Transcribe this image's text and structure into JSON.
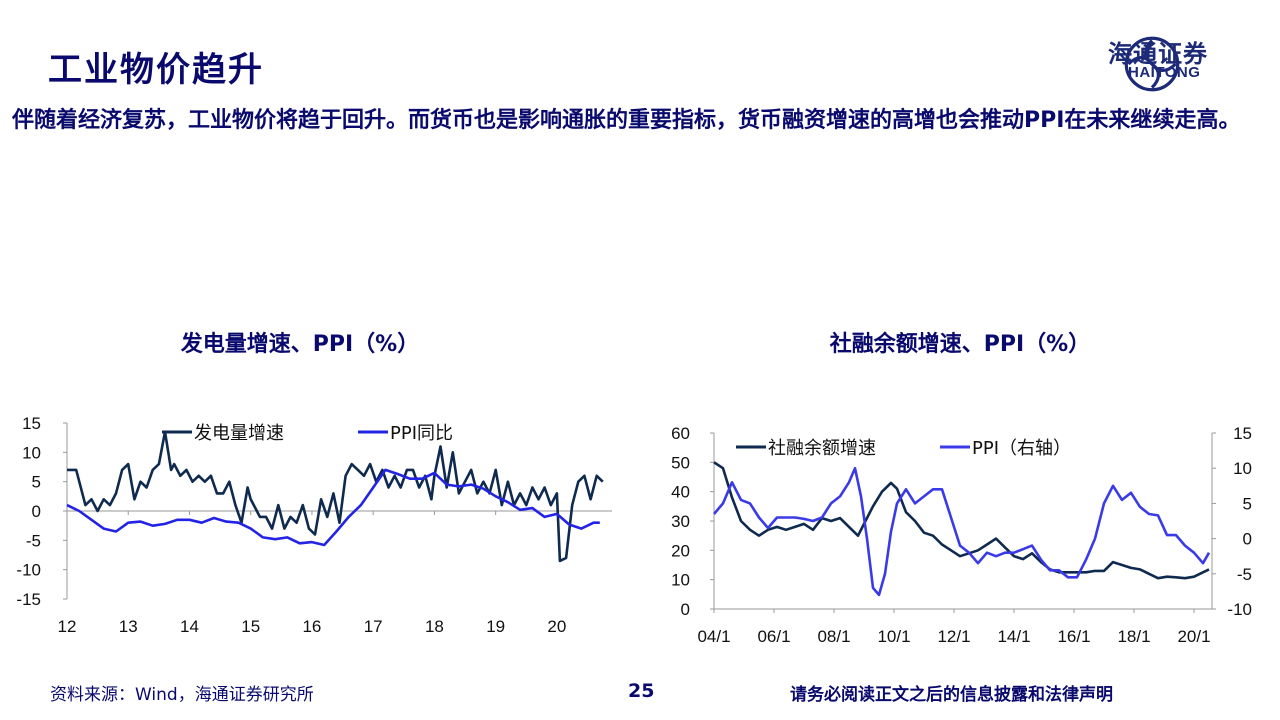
{
  "header": {
    "title": "工业物价趋升",
    "logo_cn": "海通证券",
    "logo_en": "HAITONG"
  },
  "intro": "伴随着经济复苏，工业物价将趋于回升。而货币也是影响通胀的重要指标，货币融资增速的高增也会推动PPI在未来继续走高。",
  "colors": {
    "dark": "#0f2a4f",
    "blue": "#2323e6",
    "accent": "#3a3ae8"
  },
  "footer": {
    "source": "资料来源：Wind，海通证券研究所",
    "page": "25",
    "disclaimer": "请务必阅读正文之后的信息披露和法律声明"
  },
  "chart_data": [
    {
      "type": "line",
      "title": "发电量增速、PPI（%）",
      "ylim": [
        -15,
        15
      ],
      "yticks": [
        "15",
        "10",
        "5",
        "0",
        "-5",
        "-10",
        "-15"
      ],
      "xlim": [
        2012,
        2020.9
      ],
      "xticks": [
        "12",
        "13",
        "14",
        "15",
        "16",
        "17",
        "18",
        "19",
        "20"
      ],
      "legend": "top",
      "series": [
        {
          "name": "发电量增速",
          "x": [
            2012.0,
            2012.15,
            2012.3,
            2012.4,
            2012.5,
            2012.6,
            2012.7,
            2012.8,
            2012.9,
            2013.0,
            2013.1,
            2013.2,
            2013.3,
            2013.4,
            2013.5,
            2013.6,
            2013.7,
            2013.75,
            2013.85,
            2013.95,
            2014.05,
            2014.15,
            2014.25,
            2014.35,
            2014.45,
            2014.55,
            2014.65,
            2014.75,
            2014.85,
            2014.95,
            2015.0,
            2015.05,
            2015.15,
            2015.25,
            2015.35,
            2015.45,
            2015.55,
            2015.65,
            2015.75,
            2015.85,
            2015.95,
            2016.05,
            2016.15,
            2016.25,
            2016.35,
            2016.45,
            2016.55,
            2016.65,
            2016.75,
            2016.85,
            2016.95,
            2017.05,
            2017.15,
            2017.25,
            2017.35,
            2017.45,
            2017.55,
            2017.65,
            2017.75,
            2017.85,
            2017.95,
            2018.0,
            2018.1,
            2018.2,
            2018.3,
            2018.4,
            2018.5,
            2018.6,
            2018.7,
            2018.8,
            2018.9,
            2019.0,
            2019.1,
            2019.2,
            2019.3,
            2019.4,
            2019.5,
            2019.6,
            2019.7,
            2019.8,
            2019.9,
            2020.0,
            2020.05,
            2020.15,
            2020.25,
            2020.35,
            2020.45,
            2020.55,
            2020.65,
            2020.75
          ],
          "values": [
            7,
            7,
            1,
            2,
            0,
            2,
            1,
            3,
            7,
            8,
            2,
            5,
            4,
            7,
            8,
            13.5,
            7,
            8,
            6,
            7,
            5,
            6,
            5,
            6,
            3,
            3,
            5,
            1,
            -2,
            4,
            2,
            1,
            -1,
            -1,
            -3,
            1,
            -3,
            -1,
            -2,
            1,
            -3,
            -4,
            2,
            -1,
            3,
            -2,
            6,
            8,
            7,
            6,
            8,
            5,
            7,
            4,
            6,
            4,
            7,
            7,
            4,
            6,
            2,
            6,
            11,
            4,
            10,
            3,
            5,
            7,
            3,
            5,
            3,
            7,
            1,
            5,
            1,
            3,
            1,
            4,
            2,
            4,
            1,
            3,
            -8.5,
            -8,
            1,
            5,
            6,
            2,
            6,
            5
          ],
          "color": "#0f2a4f"
        },
        {
          "name": "PPI同比",
          "x": [
            2012.0,
            2012.2,
            2012.4,
            2012.6,
            2012.8,
            2013.0,
            2013.2,
            2013.4,
            2013.6,
            2013.8,
            2014.0,
            2014.2,
            2014.4,
            2014.6,
            2014.8,
            2015.0,
            2015.2,
            2015.4,
            2015.6,
            2015.8,
            2016.0,
            2016.2,
            2016.4,
            2016.6,
            2016.8,
            2017.0,
            2017.2,
            2017.4,
            2017.6,
            2017.8,
            2018.0,
            2018.2,
            2018.4,
            2018.6,
            2018.8,
            2019.0,
            2019.2,
            2019.4,
            2019.6,
            2019.8,
            2020.0,
            2020.2,
            2020.4,
            2020.6,
            2020.7
          ],
          "values": [
            1,
            0,
            -1.5,
            -3,
            -3.5,
            -2,
            -1.8,
            -2.5,
            -2.2,
            -1.5,
            -1.5,
            -2,
            -1.2,
            -1.8,
            -2,
            -3,
            -4.5,
            -4.8,
            -4.5,
            -5.5,
            -5.3,
            -5.8,
            -3.5,
            -1,
            1,
            4,
            7,
            6.3,
            5.5,
            5.5,
            6.5,
            4.5,
            4.2,
            4.5,
            3.8,
            2.5,
            1.5,
            0.2,
            0.5,
            -1,
            -0.5,
            -2.3,
            -3,
            -2,
            -2
          ],
          "color": "#2323e6"
        }
      ]
    },
    {
      "type": "line",
      "title": "社融余额增速、PPI（%）",
      "ylim": [
        0,
        60
      ],
      "yticks": [
        "60",
        "50",
        "40",
        "30",
        "20",
        "10",
        "0"
      ],
      "y2lim": [
        -10,
        15
      ],
      "y2ticks": [
        "15",
        "10",
        "5",
        "0",
        "-5",
        "-10"
      ],
      "xlim": [
        2004,
        2020.6
      ],
      "xticks": [
        "04/1",
        "06/1",
        "08/1",
        "10/1",
        "12/1",
        "14/1",
        "16/1",
        "18/1",
        "20/1"
      ],
      "legend": "top",
      "series": [
        {
          "name": "社融余额增速",
          "axis": "left",
          "x": [
            2004.0,
            2004.3,
            2004.6,
            2004.9,
            2005.2,
            2005.5,
            2005.8,
            2006.1,
            2006.4,
            2006.7,
            2007.0,
            2007.3,
            2007.6,
            2007.9,
            2008.2,
            2008.5,
            2008.8,
            2009.0,
            2009.3,
            2009.6,
            2009.9,
            2010.1,
            2010.4,
            2010.7,
            2011.0,
            2011.3,
            2011.6,
            2011.9,
            2012.2,
            2012.5,
            2012.8,
            2013.1,
            2013.4,
            2013.7,
            2014.0,
            2014.3,
            2014.6,
            2014.9,
            2015.2,
            2015.5,
            2015.8,
            2016.1,
            2016.4,
            2016.7,
            2017.0,
            2017.3,
            2017.6,
            2017.9,
            2018.2,
            2018.5,
            2018.8,
            2019.1,
            2019.4,
            2019.7,
            2020.0,
            2020.3,
            2020.5
          ],
          "values": [
            50,
            48,
            38,
            30,
            27,
            25,
            27,
            28,
            27,
            28,
            29,
            27,
            31,
            30,
            31,
            28,
            25,
            29,
            35,
            40,
            43,
            41,
            33,
            30,
            26,
            25,
            22,
            20,
            18,
            19,
            20,
            22,
            24,
            21,
            18,
            17,
            19,
            16,
            13.5,
            12.5,
            12.5,
            12.5,
            12.5,
            13,
            13,
            16,
            15,
            14,
            13.5,
            12,
            10.5,
            11,
            10.8,
            10.5,
            11,
            12.5,
            13.5
          ],
          "color": "#0f2a4f"
        },
        {
          "name": "PPI（右轴）",
          "axis": "right",
          "x": [
            2004.0,
            2004.3,
            2004.6,
            2004.9,
            2005.2,
            2005.5,
            2005.8,
            2006.1,
            2006.4,
            2006.7,
            2007.0,
            2007.3,
            2007.6,
            2007.9,
            2008.2,
            2008.5,
            2008.7,
            2008.9,
            2009.1,
            2009.3,
            2009.5,
            2009.7,
            2009.9,
            2010.1,
            2010.4,
            2010.7,
            2011.0,
            2011.3,
            2011.6,
            2011.9,
            2012.2,
            2012.5,
            2012.8,
            2013.1,
            2013.4,
            2013.7,
            2014.0,
            2014.3,
            2014.6,
            2014.9,
            2015.2,
            2015.5,
            2015.8,
            2016.1,
            2016.4,
            2016.7,
            2017.0,
            2017.3,
            2017.6,
            2017.9,
            2018.2,
            2018.5,
            2018.8,
            2019.1,
            2019.4,
            2019.7,
            2020.0,
            2020.3,
            2020.5
          ],
          "values": [
            3.5,
            5,
            8,
            5.5,
            5,
            3,
            1.5,
            3,
            3,
            3,
            2.8,
            2.5,
            3,
            5,
            6,
            8,
            10,
            6,
            0,
            -7,
            -8,
            -5,
            1,
            5,
            7,
            5,
            6,
            7,
            7,
            3,
            -1,
            -2,
            -3.5,
            -2,
            -2.5,
            -2,
            -2,
            -1.5,
            -1,
            -3,
            -4.5,
            -4.5,
            -5.5,
            -5.5,
            -3,
            0,
            5,
            7.5,
            5.5,
            6.5,
            4.5,
            3.5,
            3.3,
            0.5,
            0.5,
            -1,
            -2,
            -3.5,
            -2
          ],
          "color": "#3a3ae8"
        }
      ]
    }
  ]
}
